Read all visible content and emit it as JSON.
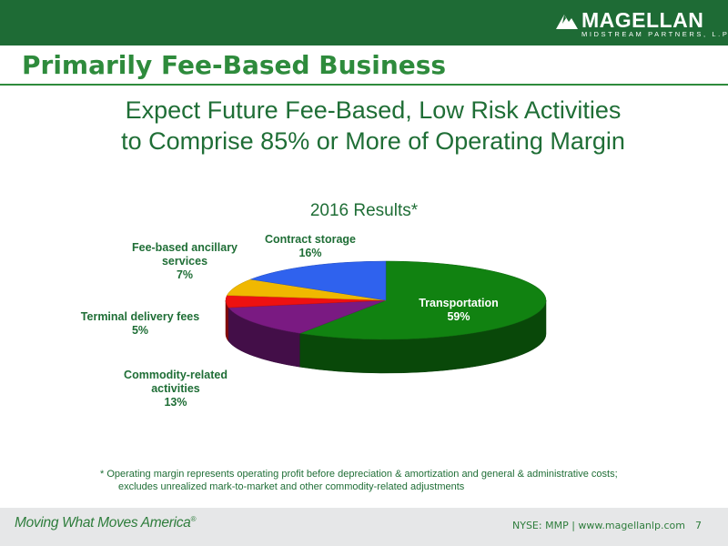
{
  "header": {
    "logo_name": "MAGELLAN",
    "logo_sub": "MIDSTREAM PARTNERS, L.P."
  },
  "page_title": "Primarily Fee-Based Business",
  "headline": {
    "line1": "Expect Future Fee-Based, Low Risk Activities",
    "line2": "to Comprise 85% or More of Operating Margin"
  },
  "chart_data": {
    "type": "pie",
    "title": "2016 Results*",
    "slices": [
      {
        "label_lines": [
          "Transportation",
          "59%"
        ],
        "value": 59,
        "color": "#118211",
        "text_color": "#ffffff"
      },
      {
        "label_lines": [
          "Commodity-related",
          "activities",
          "13%"
        ],
        "value": 13,
        "color": "#7a1a82",
        "text_color": "#1f6e36"
      },
      {
        "label_lines": [
          "Terminal delivery fees",
          "5%"
        ],
        "value": 5,
        "color": "#ee1111",
        "text_color": "#1f6e36"
      },
      {
        "label_lines": [
          "Fee-based ancillary",
          "services",
          "7%"
        ],
        "value": 7,
        "color": "#f0b800",
        "text_color": "#1f6e36"
      },
      {
        "label_lines": [
          "Contract storage",
          "16%"
        ],
        "value": 16,
        "color": "#2f62ee",
        "text_color": "#1f6e36"
      }
    ]
  },
  "footnote": {
    "line1": "* Operating margin represents operating profit before depreciation & amortization and general & administrative costs;",
    "line2": "excludes unrealized mark-to-market and other commodity-related adjustments"
  },
  "footer": {
    "tagline": "Moving What Moves America",
    "tagline_mark": "®",
    "ticker": "NYSE: MMP | www.magellanlp.com",
    "page_number": "7"
  }
}
